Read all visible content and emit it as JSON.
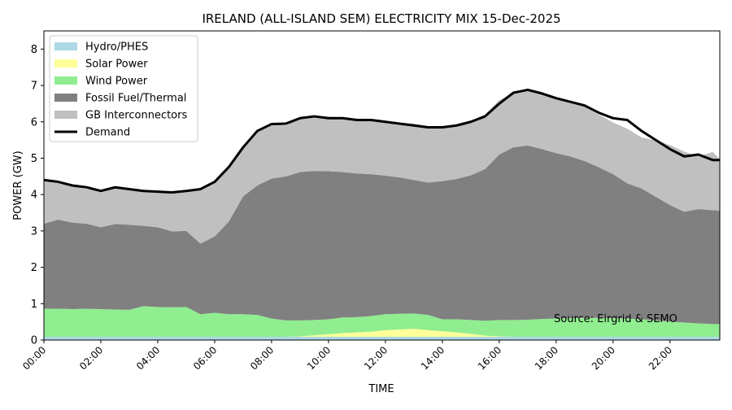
{
  "chart_data": {
    "type": "area",
    "stacked": true,
    "title": "IRELAND (ALL-ISLAND SEM) ELECTRICITY MIX 15-Dec-2025",
    "xlabel": "TIME",
    "ylabel": "POWER (GW)",
    "xlim": [
      0,
      23.75
    ],
    "ylim": [
      0,
      8.5
    ],
    "x_ticks": [
      0,
      2,
      4,
      6,
      8,
      10,
      12,
      14,
      16,
      18,
      20,
      22
    ],
    "x_tick_labels": [
      "00:00",
      "02:00",
      "04:00",
      "06:00",
      "08:00",
      "10:00",
      "12:00",
      "14:00",
      "16:00",
      "18:00",
      "20:00",
      "22:00"
    ],
    "y_ticks": [
      0,
      1,
      2,
      3,
      4,
      5,
      6,
      7,
      8
    ],
    "y_tick_labels": [
      "0",
      "1",
      "2",
      "3",
      "4",
      "5",
      "6",
      "7",
      "8"
    ],
    "annotation": "Source: Eirgrid & SEMO",
    "legend_position": "top-left",
    "x_hours": [
      0,
      0.5,
      1,
      1.5,
      2,
      2.5,
      3,
      3.5,
      4,
      4.5,
      5,
      5.5,
      6,
      6.5,
      7,
      7.5,
      8,
      8.5,
      9,
      9.5,
      10,
      10.5,
      11,
      11.5,
      12,
      12.5,
      13,
      13.5,
      14,
      14.5,
      15,
      15.5,
      16,
      16.5,
      17,
      17.5,
      18,
      18.5,
      19,
      19.5,
      20,
      20.5,
      21,
      21.5,
      22,
      22.5,
      23,
      23.5,
      23.75
    ],
    "series": [
      {
        "name": "Hydro/PHES",
        "color": "#add8e6",
        "type": "area",
        "values": [
          0.09,
          0.09,
          0.09,
          0.09,
          0.09,
          0.09,
          0.09,
          0.09,
          0.09,
          0.09,
          0.09,
          0.09,
          0.09,
          0.09,
          0.09,
          0.09,
          0.09,
          0.09,
          0.09,
          0.09,
          0.09,
          0.09,
          0.09,
          0.09,
          0.09,
          0.09,
          0.09,
          0.09,
          0.09,
          0.09,
          0.09,
          0.09,
          0.09,
          0.09,
          0.09,
          0.09,
          0.09,
          0.09,
          0.09,
          0.09,
          0.09,
          0.09,
          0.09,
          0.09,
          0.09,
          0.09,
          0.09,
          0.09,
          0.09
        ]
      },
      {
        "name": "Solar Power",
        "color": "#ffff99",
        "type": "area",
        "values": [
          0,
          0,
          0,
          0,
          0,
          0,
          0,
          0,
          0,
          0,
          0,
          0,
          0,
          0,
          0,
          0,
          0,
          0,
          0.01,
          0.04,
          0.07,
          0.1,
          0.12,
          0.14,
          0.18,
          0.2,
          0.22,
          0.18,
          0.15,
          0.12,
          0.08,
          0.03,
          0.01,
          0,
          0,
          0,
          0,
          0,
          0,
          0,
          0,
          0,
          0,
          0,
          0,
          0,
          0,
          0,
          0
        ]
      },
      {
        "name": "Wind Power",
        "color": "#90ee90",
        "type": "area",
        "values": [
          0.77,
          0.77,
          0.76,
          0.77,
          0.76,
          0.75,
          0.74,
          0.84,
          0.82,
          0.81,
          0.82,
          0.62,
          0.66,
          0.62,
          0.62,
          0.6,
          0.5,
          0.45,
          0.44,
          0.42,
          0.41,
          0.43,
          0.42,
          0.43,
          0.44,
          0.43,
          0.42,
          0.42,
          0.33,
          0.36,
          0.38,
          0.41,
          0.45,
          0.46,
          0.47,
          0.49,
          0.5,
          0.51,
          0.52,
          0.52,
          0.51,
          0.5,
          0.48,
          0.45,
          0.42,
          0.39,
          0.37,
          0.35,
          0.35
        ]
      },
      {
        "name": "Fossil Fuel/Thermal",
        "color": "#808080",
        "type": "area",
        "values": [
          2.34,
          2.45,
          2.38,
          2.34,
          2.25,
          2.35,
          2.34,
          2.21,
          2.19,
          2.09,
          2.09,
          1.94,
          2.1,
          2.55,
          3.24,
          3.56,
          3.85,
          3.96,
          4.08,
          4.1,
          4.07,
          4.0,
          3.95,
          3.9,
          3.81,
          3.75,
          3.67,
          3.64,
          3.8,
          3.86,
          3.98,
          4.17,
          4.55,
          4.75,
          4.79,
          4.67,
          4.55,
          4.45,
          4.31,
          4.14,
          3.96,
          3.72,
          3.6,
          3.4,
          3.2,
          3.05,
          3.14,
          3.13,
          3.12
        ]
      },
      {
        "name": "GB Interconnectors",
        "color": "#c0c0c0",
        "type": "area",
        "values": [
          1.2,
          1.0,
          1.0,
          0.95,
          1.0,
          1.0,
          1.0,
          0.95,
          0.98,
          1.07,
          1.1,
          1.5,
          1.5,
          1.5,
          1.35,
          1.5,
          1.5,
          1.4,
          1.5,
          1.5,
          1.5,
          1.5,
          1.5,
          1.5,
          1.5,
          1.5,
          1.55,
          1.55,
          1.5,
          1.5,
          1.5,
          1.5,
          1.5,
          1.5,
          1.5,
          1.5,
          1.5,
          1.5,
          1.5,
          1.45,
          1.42,
          1.5,
          1.4,
          1.55,
          1.65,
          1.65,
          1.45,
          1.6,
          1.42
        ]
      },
      {
        "name": "Demand",
        "color": "#000000",
        "type": "line",
        "values": [
          4.4,
          4.35,
          4.25,
          4.2,
          4.1,
          4.2,
          4.15,
          4.1,
          4.08,
          4.06,
          4.1,
          4.15,
          4.35,
          4.76,
          5.3,
          5.75,
          5.94,
          5.95,
          6.1,
          6.15,
          6.1,
          6.1,
          6.05,
          6.05,
          6.0,
          5.95,
          5.9,
          5.85,
          5.85,
          5.9,
          6.0,
          6.15,
          6.5,
          6.8,
          6.88,
          6.78,
          6.65,
          6.55,
          6.45,
          6.25,
          6.1,
          6.05,
          5.75,
          5.5,
          5.25,
          5.05,
          5.1,
          4.95,
          4.95
        ]
      }
    ]
  }
}
